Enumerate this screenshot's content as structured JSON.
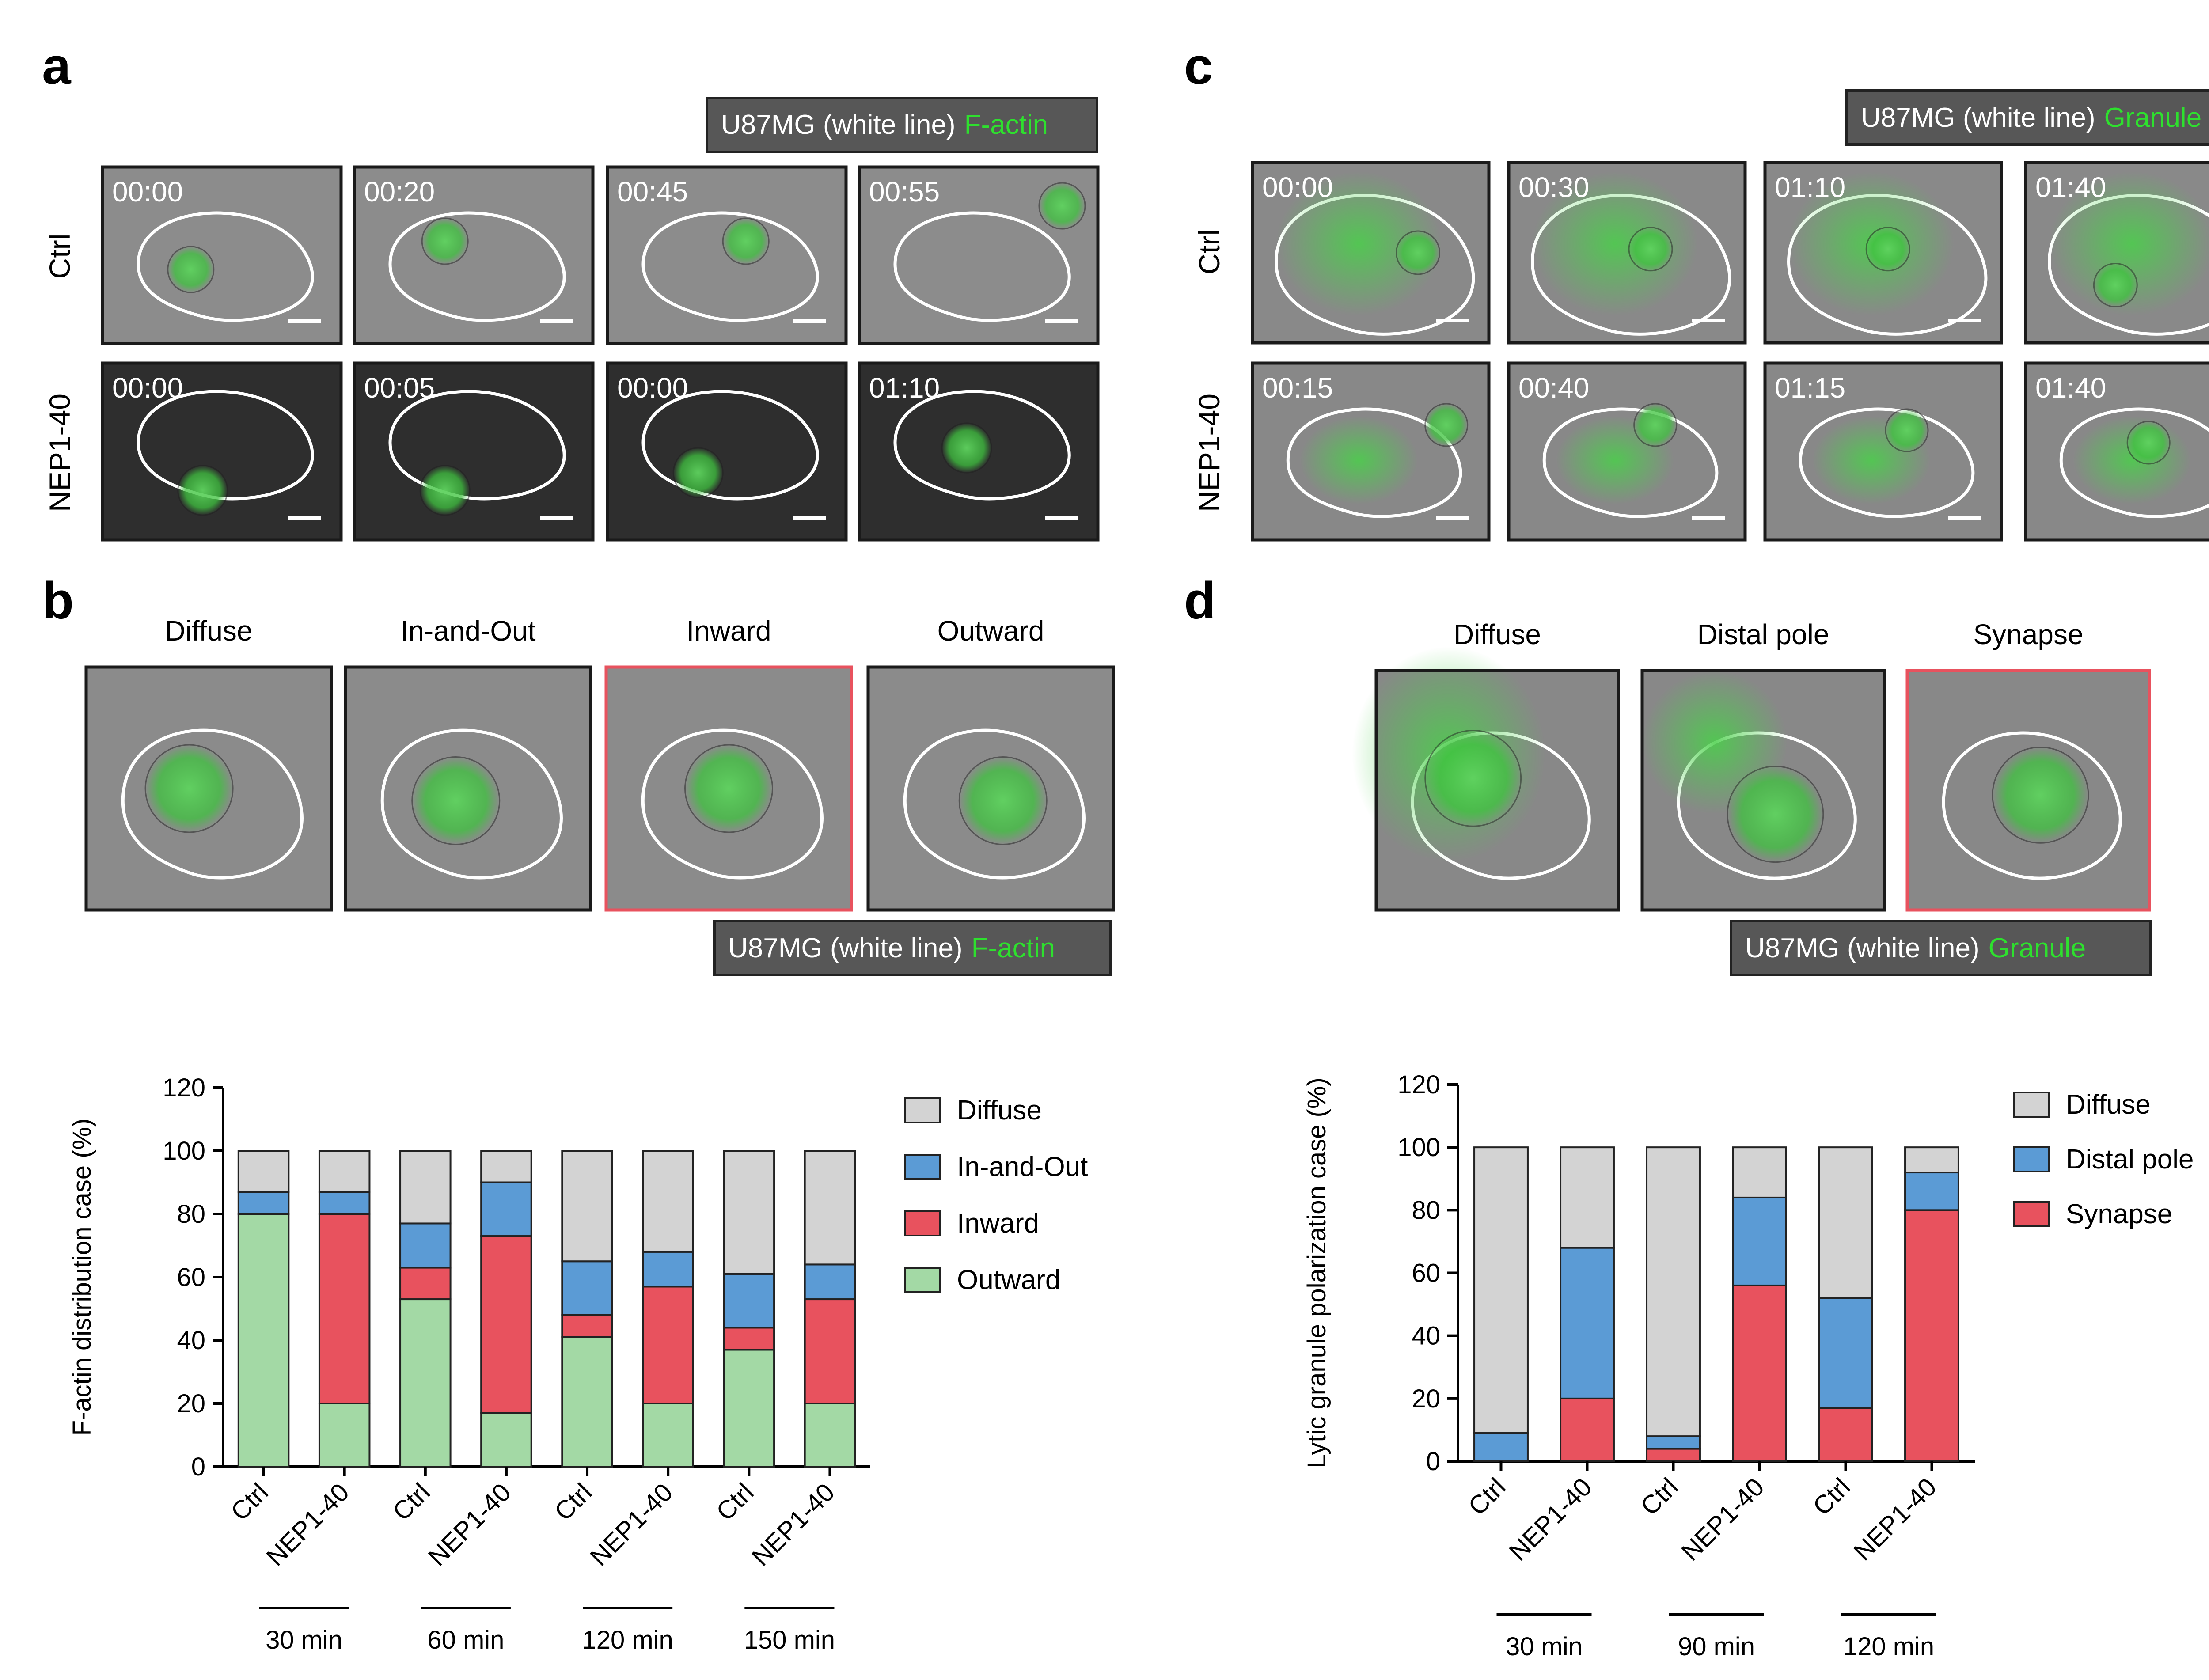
{
  "panels": {
    "a": "a",
    "b": "b",
    "c": "c",
    "d": "d"
  },
  "legend_boxes": {
    "a": {
      "prefix": "U87MG (white line)",
      "marker": "F-actin"
    },
    "b": {
      "prefix": "U87MG (white line)",
      "marker": "F-actin"
    },
    "c": {
      "prefix": "U87MG (white line)",
      "marker": "Granule"
    },
    "d": {
      "prefix": "U87MG (white line)",
      "marker": "Granule"
    }
  },
  "row_labels": {
    "ctrl": "Ctrl",
    "nep": "NEP1-40"
  },
  "panel_a_times": {
    "ctrl": [
      "00:00",
      "00:20",
      "00:45",
      "00:55"
    ],
    "nep": [
      "00:00",
      "00:05",
      "00:00",
      "01:10"
    ]
  },
  "panel_c_times": {
    "ctrl": [
      "00:00",
      "00:30",
      "01:10",
      "01:40"
    ],
    "nep": [
      "00:15",
      "00:40",
      "01:15",
      "01:40"
    ]
  },
  "panel_b_headers": [
    "Diffuse",
    "In-and-Out",
    "Inward",
    "Outward"
  ],
  "panel_d_headers": [
    "Diffuse",
    "Distal pole",
    "Synapse"
  ],
  "colors": {
    "diffuse": "#d3d3d3",
    "in_and_out": "#5b9bd5",
    "inward": "#e8525e",
    "outward": "#a3d9a5",
    "distal_pole": "#5b9bd5",
    "synapse": "#e8525e",
    "fluor_green": "#3be43b",
    "highlight_border": "#e8525e"
  },
  "chart_data": [
    {
      "type": "bar",
      "stacked": true,
      "ylabel": "F-actin distribution case (%)",
      "ylim": [
        0,
        120
      ],
      "yticks": [
        0,
        20,
        40,
        60,
        80,
        100,
        120
      ],
      "categories": [
        "Ctrl",
        "NEP1-40",
        "Ctrl",
        "NEP1-40",
        "Ctrl",
        "NEP1-40",
        "Ctrl",
        "NEP1-40"
      ],
      "groups": [
        "30 min",
        "60 min",
        "120 min",
        "150 min"
      ],
      "legend": [
        "Diffuse",
        "In-and-Out",
        "Inward",
        "Outward"
      ],
      "legend_position": "right",
      "series": [
        {
          "name": "Outward",
          "values": [
            80,
            20,
            53,
            17,
            41,
            20,
            37,
            20
          ]
        },
        {
          "name": "Inward",
          "values": [
            0,
            60,
            10,
            56,
            7,
            37,
            7,
            33
          ]
        },
        {
          "name": "In-and-Out",
          "values": [
            7,
            7,
            14,
            17,
            17,
            11,
            17,
            11
          ]
        },
        {
          "name": "Diffuse",
          "values": [
            13,
            13,
            23,
            10,
            35,
            32,
            39,
            36
          ]
        }
      ]
    },
    {
      "type": "bar",
      "stacked": true,
      "ylabel": "Lytic granule polarization case (%)",
      "ylim": [
        0,
        120
      ],
      "yticks": [
        0,
        20,
        40,
        60,
        80,
        100,
        120
      ],
      "categories": [
        "Ctrl",
        "NEP1-40",
        "Ctrl",
        "NEP1-40",
        "Ctrl",
        "NEP1-40"
      ],
      "groups": [
        "30 min",
        "90 min",
        "120 min"
      ],
      "legend": [
        "Diffuse",
        "Distal pole",
        "Synapse"
      ],
      "legend_position": "right",
      "series": [
        {
          "name": "Synapse",
          "values": [
            0,
            20,
            4,
            56,
            17,
            80
          ]
        },
        {
          "name": "Distal pole",
          "values": [
            9,
            48,
            4,
            28,
            35,
            12
          ]
        },
        {
          "name": "Diffuse",
          "values": [
            91,
            32,
            92,
            16,
            48,
            8
          ]
        }
      ]
    }
  ]
}
